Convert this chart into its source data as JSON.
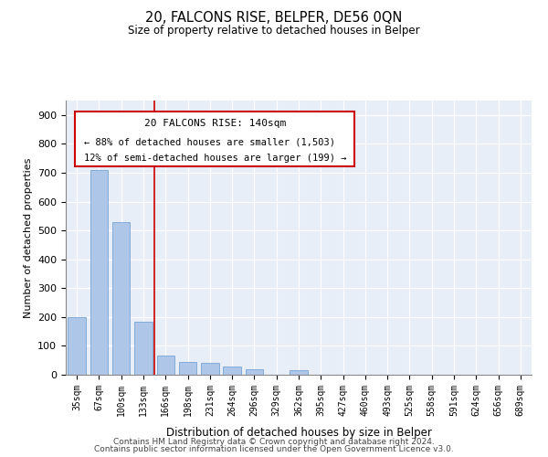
{
  "title": "20, FALCONS RISE, BELPER, DE56 0QN",
  "subtitle": "Size of property relative to detached houses in Belper",
  "xlabel": "Distribution of detached houses by size in Belper",
  "ylabel": "Number of detached properties",
  "footer1": "Contains HM Land Registry data © Crown copyright and database right 2024.",
  "footer2": "Contains public sector information licensed under the Open Government Licence v3.0.",
  "annotation_line1": "20 FALCONS RISE: 140sqm",
  "annotation_line2": "← 88% of detached houses are smaller (1,503)",
  "annotation_line3": "12% of semi-detached houses are larger (199) →",
  "bar_color": "#aec6e8",
  "bar_edge_color": "#6699cc",
  "vline_color": "#cc0000",
  "background_color": "#e8eef8",
  "categories": [
    "35sqm",
    "67sqm",
    "100sqm",
    "133sqm",
    "166sqm",
    "198sqm",
    "231sqm",
    "264sqm",
    "296sqm",
    "329sqm",
    "362sqm",
    "395sqm",
    "427sqm",
    "460sqm",
    "493sqm",
    "525sqm",
    "558sqm",
    "591sqm",
    "624sqm",
    "656sqm",
    "689sqm"
  ],
  "bar_values": [
    200,
    710,
    530,
    185,
    65,
    45,
    40,
    30,
    20,
    0,
    15,
    0,
    0,
    0,
    0,
    0,
    0,
    0,
    0,
    0,
    0
  ],
  "vline_position": 3.5,
  "ylim": [
    0,
    950
  ],
  "yticks": [
    0,
    100,
    200,
    300,
    400,
    500,
    600,
    700,
    800,
    900
  ]
}
